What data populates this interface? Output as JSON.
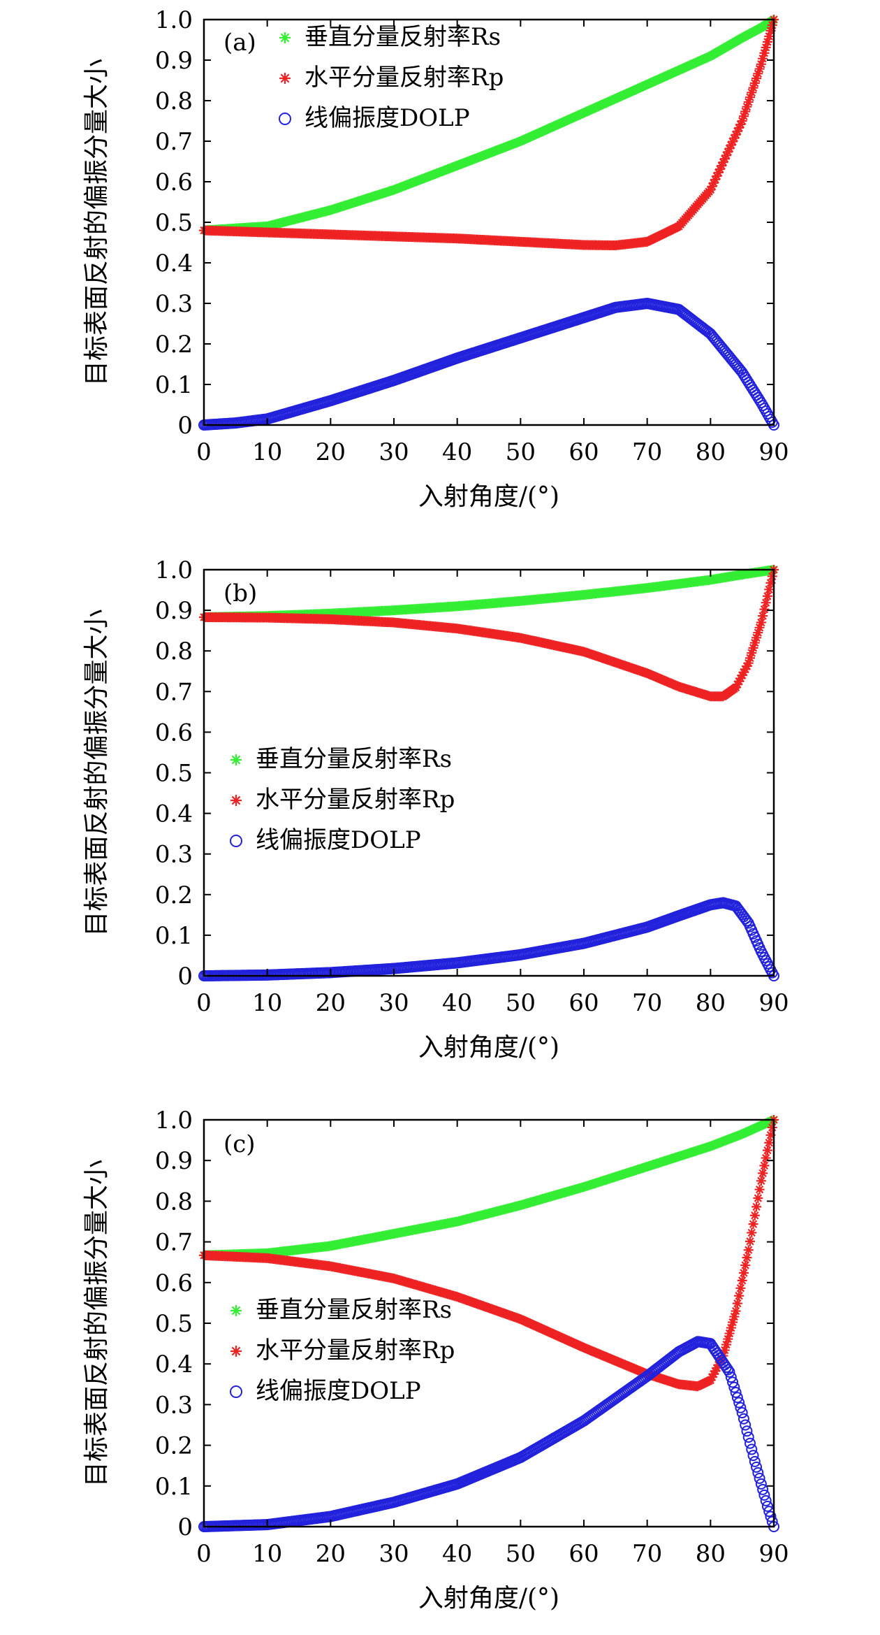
{
  "chart_data": [
    {
      "type": "scatter",
      "panel_label": "(a)",
      "xlabel": "入射角度/(°)",
      "ylabel": "目标表面反射的偏振分量大小",
      "xlim": [
        0,
        90
      ],
      "ylim": [
        0,
        1.0
      ],
      "x_ticks": [
        "0",
        "10",
        "20",
        "30",
        "40",
        "50",
        "60",
        "70",
        "80",
        "90"
      ],
      "y_ticks": [
        "0",
        "0.1",
        "0.2",
        "0.3",
        "0.4",
        "0.5",
        "0.6",
        "0.7",
        "0.8",
        "0.9",
        "1.0"
      ],
      "legend_position": "top-left",
      "series": [
        {
          "name": "垂直分量反射率Rs",
          "color": "#33ee33",
          "marker": "star",
          "x": [
            0,
            10,
            20,
            30,
            40,
            50,
            60,
            70,
            80,
            85,
            88,
            90
          ],
          "y": [
            0.48,
            0.49,
            0.53,
            0.58,
            0.64,
            0.7,
            0.77,
            0.84,
            0.91,
            0.955,
            0.98,
            1.0
          ]
        },
        {
          "name": "水平分量反射率Rp",
          "color": "#ee2222",
          "marker": "star",
          "x": [
            0,
            10,
            20,
            30,
            40,
            50,
            60,
            65,
            70,
            75,
            80,
            85,
            88,
            90
          ],
          "y": [
            0.48,
            0.475,
            0.47,
            0.465,
            0.46,
            0.452,
            0.444,
            0.443,
            0.452,
            0.49,
            0.58,
            0.75,
            0.89,
            1.0
          ]
        },
        {
          "name": "线偏振度DOLP",
          "color": "#2222dd",
          "marker": "circle",
          "x": [
            0,
            5,
            10,
            20,
            30,
            40,
            50,
            60,
            65,
            70,
            75,
            80,
            85,
            88,
            90
          ],
          "y": [
            0,
            0.005,
            0.015,
            0.06,
            0.11,
            0.165,
            0.215,
            0.265,
            0.29,
            0.3,
            0.285,
            0.225,
            0.13,
            0.055,
            0
          ]
        }
      ]
    },
    {
      "type": "scatter",
      "panel_label": "(b)",
      "xlabel": "入射角度/(°)",
      "ylabel": "目标表面反射的偏振分量大小",
      "xlim": [
        0,
        90
      ],
      "ylim": [
        0,
        1.0
      ],
      "x_ticks": [
        "0",
        "10",
        "20",
        "30",
        "40",
        "50",
        "60",
        "70",
        "80",
        "90"
      ],
      "y_ticks": [
        "0",
        "0.1",
        "0.2",
        "0.3",
        "0.4",
        "0.5",
        "0.6",
        "0.7",
        "0.8",
        "0.9",
        "1.0"
      ],
      "legend_position": "center-left",
      "series": [
        {
          "name": "垂直分量反射率Rs",
          "color": "#33ee33",
          "marker": "star",
          "x": [
            0,
            10,
            20,
            30,
            40,
            50,
            60,
            70,
            80,
            85,
            90
          ],
          "y": [
            0.883,
            0.886,
            0.892,
            0.9,
            0.91,
            0.923,
            0.938,
            0.955,
            0.975,
            0.988,
            1.0
          ]
        },
        {
          "name": "水平分量反射率Rp",
          "color": "#ee2222",
          "marker": "star",
          "x": [
            0,
            10,
            20,
            30,
            40,
            50,
            60,
            70,
            75,
            80,
            82,
            84,
            86,
            88,
            90
          ],
          "y": [
            0.883,
            0.882,
            0.878,
            0.87,
            0.855,
            0.832,
            0.798,
            0.745,
            0.712,
            0.688,
            0.688,
            0.71,
            0.77,
            0.87,
            1.0
          ]
        },
        {
          "name": "线偏振度DOLP",
          "color": "#2222dd",
          "marker": "circle",
          "x": [
            0,
            10,
            20,
            30,
            40,
            50,
            60,
            70,
            75,
            80,
            82,
            84,
            86,
            88,
            90
          ],
          "y": [
            0,
            0.002,
            0.008,
            0.018,
            0.032,
            0.052,
            0.08,
            0.12,
            0.148,
            0.175,
            0.18,
            0.172,
            0.13,
            0.06,
            0
          ]
        }
      ]
    },
    {
      "type": "scatter",
      "panel_label": "(c)",
      "xlabel": "入射角度/(°)",
      "ylabel": "目标表面反射的偏振分量大小",
      "xlim": [
        0,
        90
      ],
      "ylim": [
        0,
        1.0
      ],
      "x_ticks": [
        "0",
        "10",
        "20",
        "30",
        "40",
        "50",
        "60",
        "70",
        "80",
        "90"
      ],
      "y_ticks": [
        "0",
        "0.1",
        "0.2",
        "0.3",
        "0.4",
        "0.5",
        "0.6",
        "0.7",
        "0.8",
        "0.9",
        "1.0"
      ],
      "legend_position": "center-left",
      "series": [
        {
          "name": "垂直分量反射率Rs",
          "color": "#33ee33",
          "marker": "star",
          "x": [
            0,
            10,
            20,
            30,
            40,
            50,
            60,
            70,
            80,
            85,
            90
          ],
          "y": [
            0.667,
            0.672,
            0.69,
            0.72,
            0.75,
            0.79,
            0.835,
            0.885,
            0.935,
            0.965,
            1.0
          ]
        },
        {
          "name": "水平分量反射率Rp",
          "color": "#ee2222",
          "marker": "star",
          "x": [
            0,
            10,
            20,
            30,
            40,
            50,
            60,
            70,
            75,
            78,
            80,
            82,
            84,
            86,
            88,
            90
          ],
          "y": [
            0.667,
            0.66,
            0.64,
            0.61,
            0.565,
            0.51,
            0.44,
            0.375,
            0.35,
            0.345,
            0.36,
            0.42,
            0.53,
            0.68,
            0.85,
            1.0
          ]
        },
        {
          "name": "线偏振度DOLP",
          "color": "#2222dd",
          "marker": "circle",
          "x": [
            0,
            10,
            20,
            30,
            40,
            50,
            60,
            70,
            75,
            78,
            80,
            83,
            85,
            87,
            89,
            90
          ],
          "y": [
            0,
            0.005,
            0.025,
            0.06,
            0.105,
            0.17,
            0.26,
            0.37,
            0.43,
            0.455,
            0.45,
            0.38,
            0.28,
            0.16,
            0.05,
            0
          ]
        }
      ]
    }
  ]
}
